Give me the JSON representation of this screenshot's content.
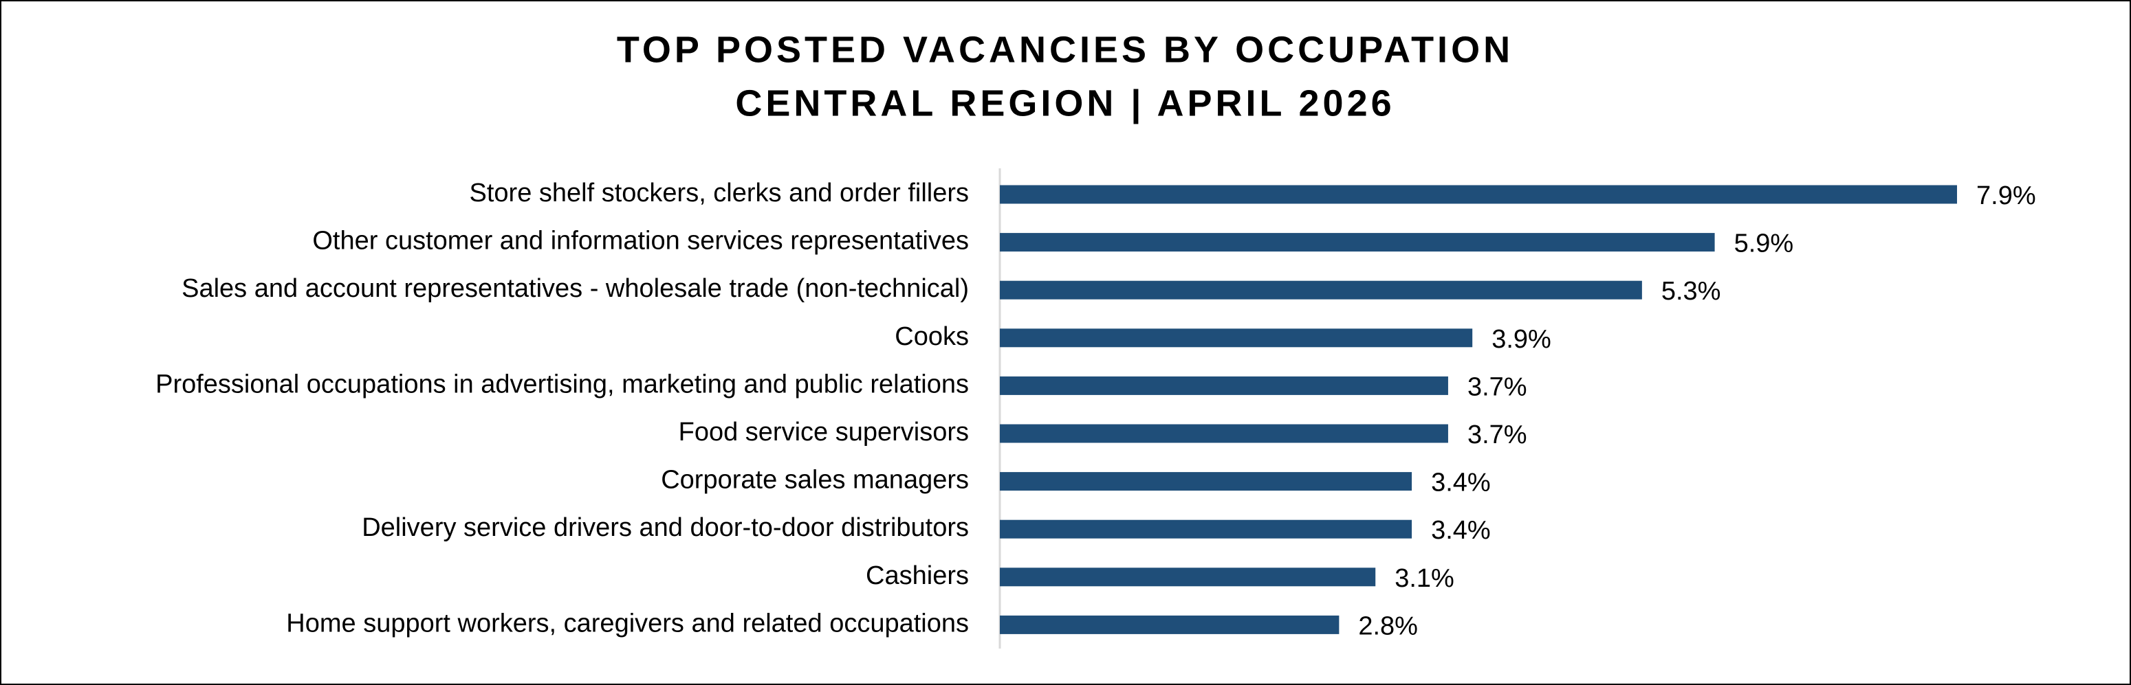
{
  "chart_data": {
    "type": "bar",
    "orientation": "horizontal",
    "title": "TOP POSTED VACANCIES BY OCCUPATION",
    "subtitle": "CENTRAL REGION | APRIL 2026",
    "categories": [
      "Store shelf stockers, clerks and order fillers",
      "Other customer and information services representatives",
      "Sales and account representatives - wholesale trade (non-technical)",
      "Cooks",
      "Professional occupations in advertising, marketing and public relations",
      "Food service supervisors",
      "Corporate sales managers",
      "Delivery service drivers and door-to-door distributors",
      "Cashiers",
      "Home support workers, caregivers and related occupations"
    ],
    "values": [
      7.9,
      5.9,
      5.3,
      3.9,
      3.7,
      3.7,
      3.4,
      3.4,
      3.1,
      2.8
    ],
    "value_labels": [
      "7.9%",
      "5.9%",
      "5.3%",
      "3.9%",
      "3.7%",
      "3.7%",
      "3.4%",
      "3.4%",
      "3.1%",
      "2.8%"
    ],
    "color": "#1f4e79"
  }
}
